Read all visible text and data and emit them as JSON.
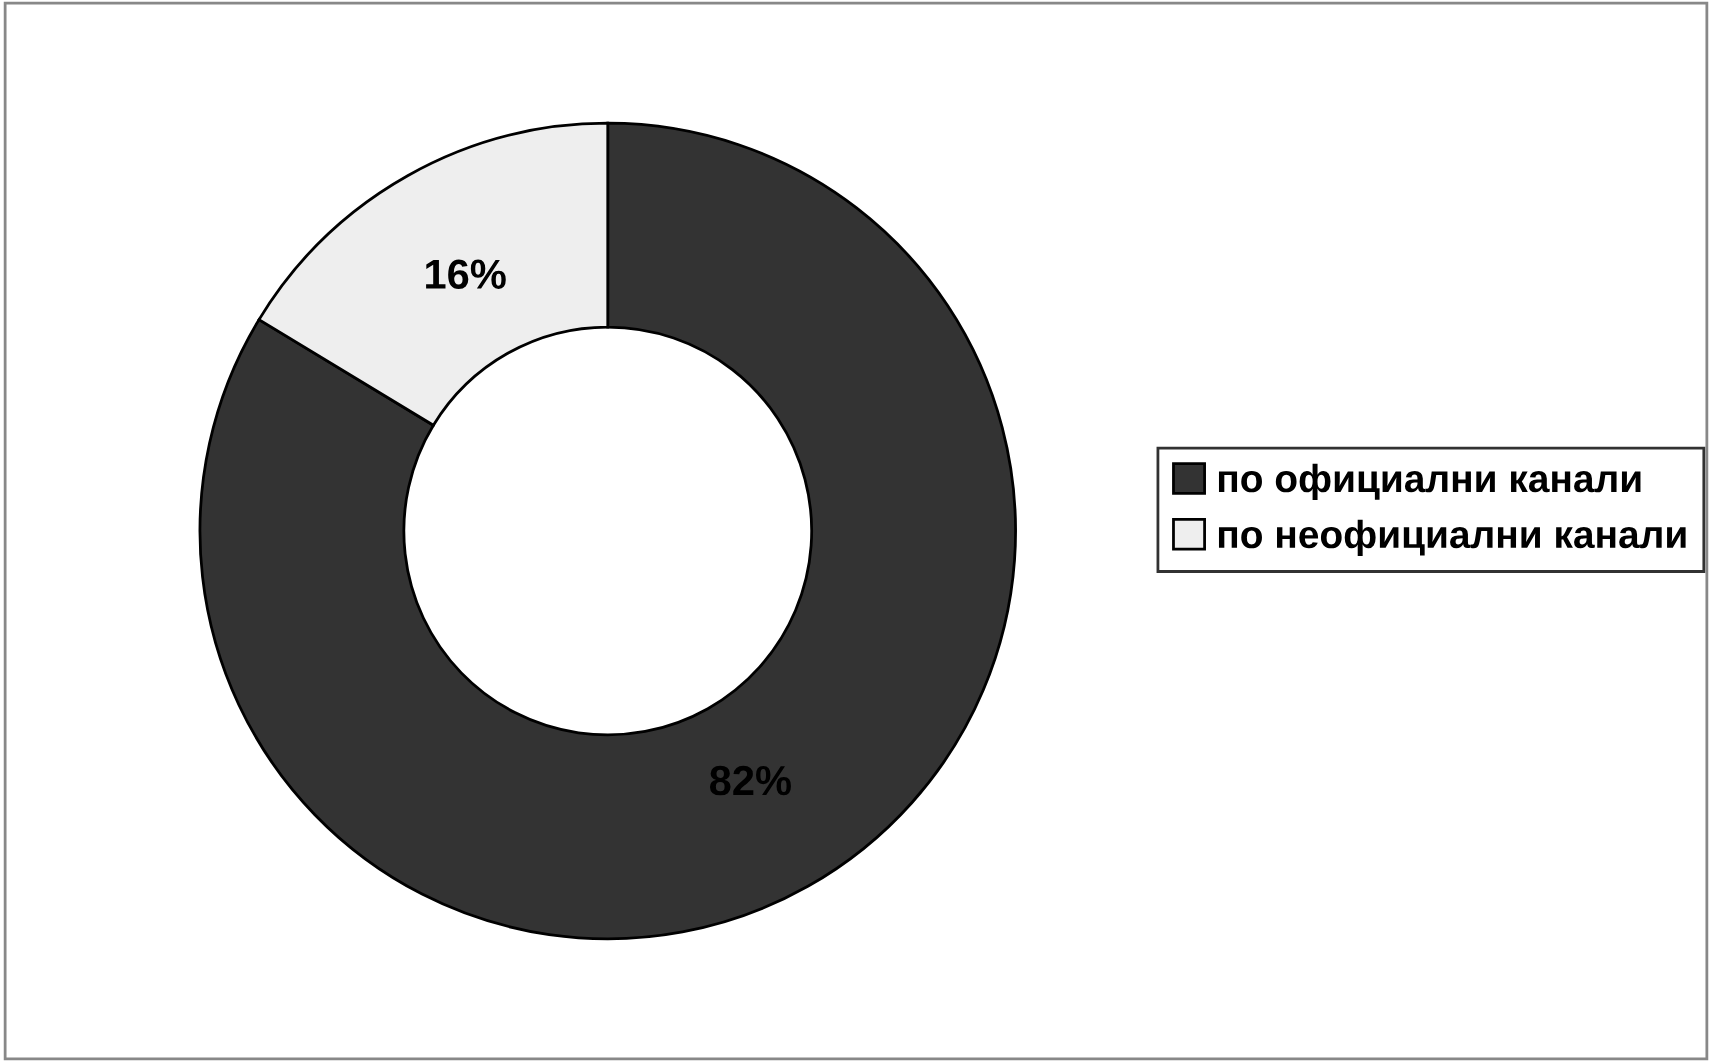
{
  "chart_data": {
    "type": "donut",
    "categories": [
      "по официални канали",
      "по неофициални канали"
    ],
    "values": [
      82,
      16
    ],
    "colors": [
      "#333333",
      "#eeeeee"
    ],
    "value_labels": [
      "82%",
      "16%"
    ],
    "legend": "right"
  }
}
